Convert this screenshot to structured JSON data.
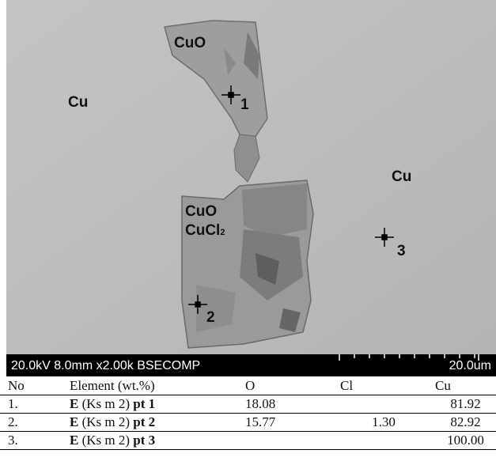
{
  "micrograph": {
    "labels": {
      "cuo_top": "CuO",
      "cu_left": "Cu",
      "cu_right": "Cu",
      "cuo_mid": "CuO",
      "cucl2_base": "CuCl",
      "cucl2_sub": "2"
    },
    "points": [
      "1",
      "2",
      "3"
    ]
  },
  "info_bar": {
    "left": "20.0kV 8.0mm x2.00k BSECOMP",
    "right": "20.0um"
  },
  "table": {
    "headers": [
      "No",
      "Element (wt.%)",
      "O",
      "Cl",
      "Cu"
    ],
    "rows": [
      {
        "no": "1.",
        "el_bold": "E",
        "el_mid": " (Ks m 2) ",
        "el_pt": "pt 1",
        "o": "18.08",
        "cl": "",
        "cu": "81.92"
      },
      {
        "no": "2.",
        "el_bold": "E",
        "el_mid": " (Ks m 2) ",
        "el_pt": "pt 2",
        "o": "15.77",
        "cl": "1.30",
        "cu": "82.92"
      },
      {
        "no": "3.",
        "el_bold": "E",
        "el_mid": " (Ks m 2) ",
        "el_pt": "pt 3",
        "o": "",
        "cl": "",
        "cu": "100.00"
      }
    ]
  }
}
